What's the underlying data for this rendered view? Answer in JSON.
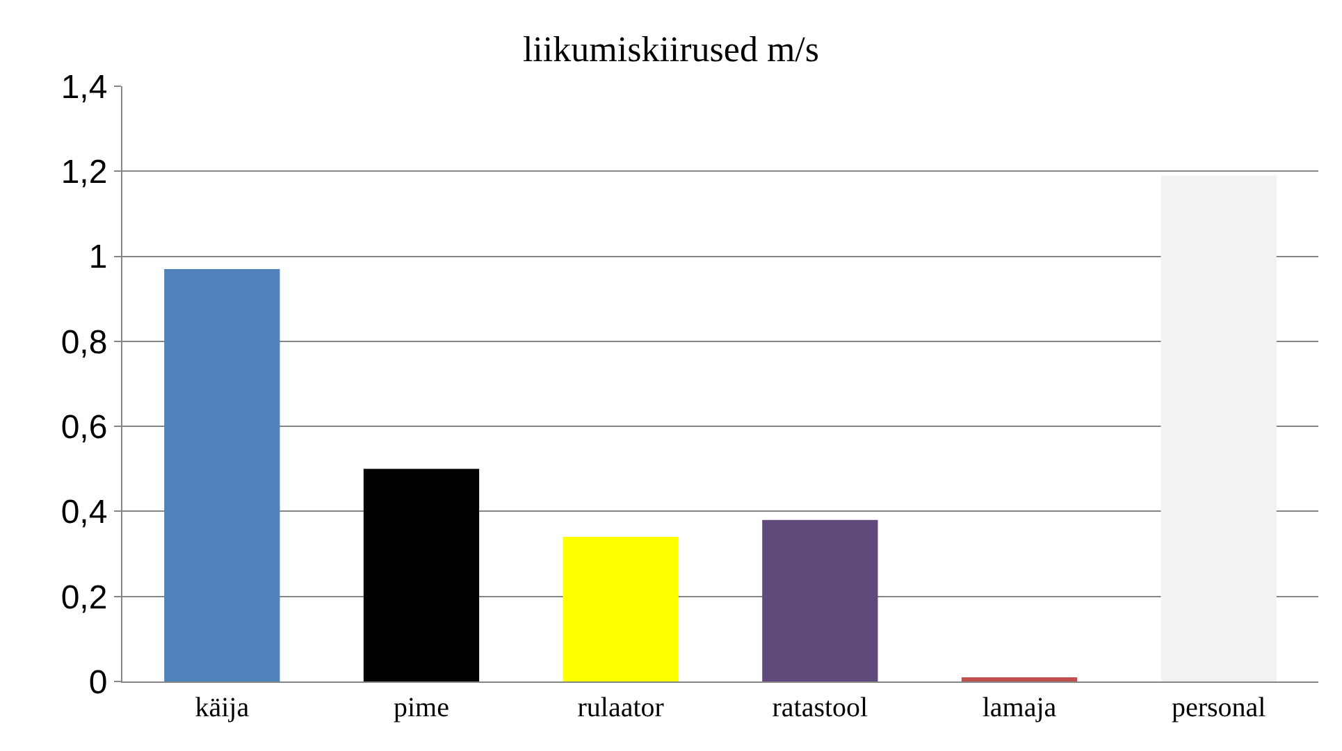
{
  "chart_data": {
    "type": "bar",
    "title": "liikumiskiirused m/s",
    "categories": [
      "käija",
      "pime",
      "rulaator",
      "ratastool",
      "lamaja",
      "personal"
    ],
    "values": [
      0.97,
      0.5,
      0.34,
      0.38,
      0.01,
      1.19
    ],
    "colors": [
      "#4f81bd",
      "#000000",
      "#ffff00",
      "#604a7b",
      "#c0504d",
      "#f2f2f2"
    ],
    "ylim": [
      0,
      1.4
    ],
    "yticks": [
      {
        "value": 0,
        "label": "0"
      },
      {
        "value": 0.2,
        "label": "0,2"
      },
      {
        "value": 0.4,
        "label": "0,4"
      },
      {
        "value": 0.6,
        "label": "0,6"
      },
      {
        "value": 0.8,
        "label": "0,8"
      },
      {
        "value": 1,
        "label": "1"
      },
      {
        "value": 1.2,
        "label": "1,2"
      },
      {
        "value": 1.4,
        "label": "1,4"
      }
    ],
    "grid": "y"
  }
}
